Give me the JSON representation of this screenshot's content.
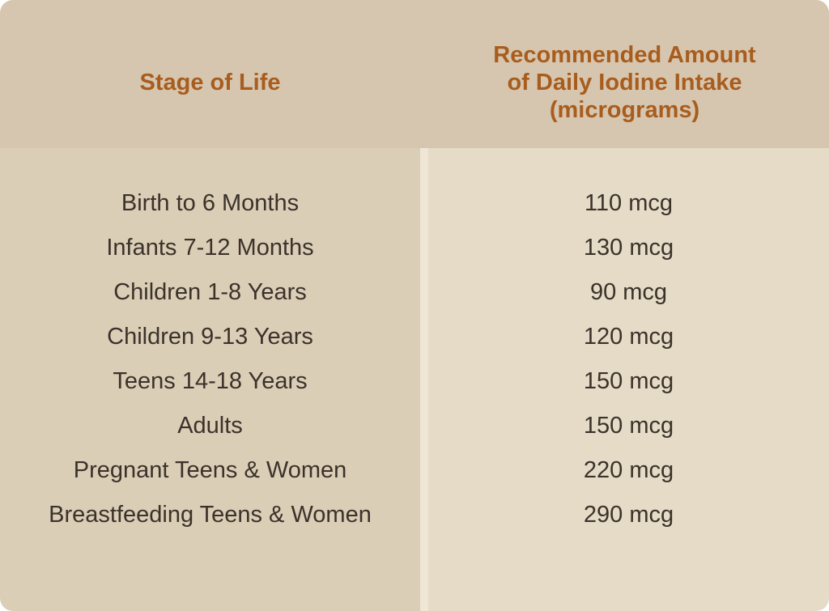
{
  "chart_data": {
    "type": "table",
    "title": "",
    "columns": [
      "Stage of Life",
      "Recommended Amount of Daily Iodine Intake (micrograms)"
    ],
    "rows": [
      [
        "Birth to 6 Months",
        "110 mcg"
      ],
      [
        "Infants 7-12 Months",
        "130 mcg"
      ],
      [
        "Children 1-8 Years",
        "90 mcg"
      ],
      [
        "Children 9-13 Years",
        "120 mcg"
      ],
      [
        "Teens 14-18 Years",
        "150 mcg"
      ],
      [
        "Adults",
        "150 mcg"
      ],
      [
        "Pregnant Teens & Women",
        "220 mcg"
      ],
      [
        "Breastfeeding Teens & Women",
        "290 mcg"
      ]
    ],
    "values_mcg": [
      110,
      130,
      90,
      120,
      150,
      150,
      220,
      290
    ],
    "unit": "mcg"
  },
  "header": {
    "col1": "Stage of Life",
    "col2_lines": [
      "Recommended Amount",
      "of Daily Iodine Intake",
      "(micrograms)"
    ]
  },
  "table": {
    "rows": [
      {
        "stage": "Birth to 6 Months",
        "amount": "110 mcg"
      },
      {
        "stage": "Infants 7-12 Months",
        "amount": "130 mcg"
      },
      {
        "stage": "Children 1-8 Years",
        "amount": "90 mcg"
      },
      {
        "stage": "Children 9-13 Years",
        "amount": "120 mcg"
      },
      {
        "stage": "Teens 14-18 Years",
        "amount": "150 mcg"
      },
      {
        "stage": "Adults",
        "amount": "150 mcg"
      },
      {
        "stage": "Pregnant Teens & Women",
        "amount": "220 mcg"
      },
      {
        "stage": "Breastfeeding Teens & Women",
        "amount": "290 mcg"
      }
    ]
  },
  "colors": {
    "accent": "#a85d1e",
    "text": "#3b322a",
    "header_bg": "#d6c6af",
    "left_bg": "#dbceb7",
    "divider_bg": "#f0e6d5",
    "right_bg": "#e5dbc7",
    "page_bg": "#ffffff"
  }
}
